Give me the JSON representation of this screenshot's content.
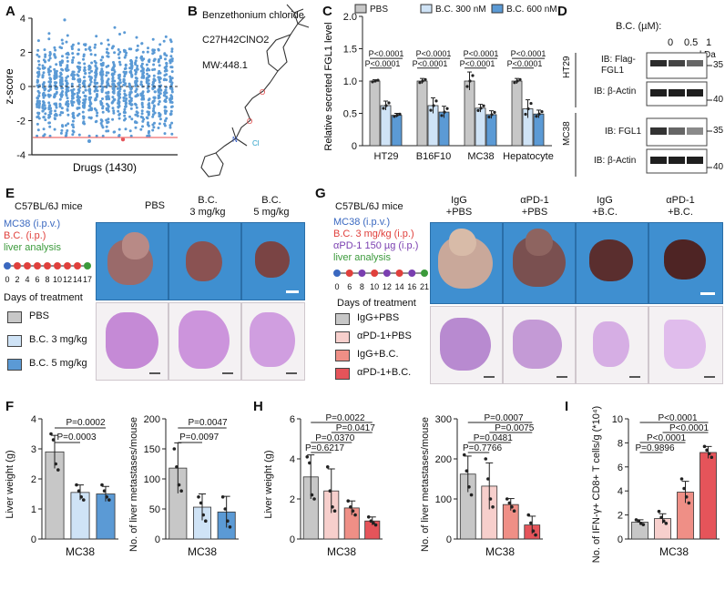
{
  "panels": {
    "A": "A",
    "B": "B",
    "C": "C",
    "D": "D",
    "E": "E",
    "F": "F",
    "G": "G",
    "H": "H",
    "I": "I"
  },
  "colors": {
    "gray": "#c7c7c7",
    "light_blue": "#cfe3f6",
    "blue": "#5b9ad5",
    "light_pink": "#f7cfcc",
    "salmon": "#ef8f86",
    "red": "#e5545a",
    "photo_bg": "#3f8fd0",
    "tissue": "#c58ad6"
  },
  "panelA": {
    "ylabel": "z-score",
    "xlabel": "Drugs (1430)",
    "yticks": [
      "4",
      "2",
      "0",
      "-2",
      "-4"
    ],
    "ylim": [
      -4,
      4
    ],
    "threshold": -3,
    "columns": 24
  },
  "panelB": {
    "name": "Benzethonium chloride",
    "formula": "C27H42ClNO2",
    "mw": "MW:448.1",
    "n_label": "N",
    "cl_label": "Cl"
  },
  "panelC": {
    "ylabel": "Relative secreted FGL1 level",
    "yticks": [
      "0",
      "0.5",
      "1.0",
      "1.5",
      "2.0"
    ],
    "legend": [
      "PBS",
      "B.C. 300 nM",
      "B.C. 600 nM"
    ],
    "categories": [
      "HT29",
      "B16F10",
      "MC38",
      "Hepatocyte"
    ],
    "pvals": [
      "P<0.0001",
      "P<0.0001",
      "P<0.0001",
      "P<0.0001",
      "P<0.0001",
      "P<0.0001",
      "P<0.0001",
      "P<0.0001"
    ]
  },
  "panelD": {
    "header": "B.C. (µM):",
    "doses": [
      "0",
      "0.5",
      "1"
    ],
    "kda": "kDa",
    "lines": [
      "HT29",
      "MC38"
    ],
    "blots": [
      "IB: Flag-\nFGL1",
      "IB: β-Actin",
      "IB: FGL1",
      "IB: β-Actin"
    ],
    "markers": [
      "35",
      "40",
      "35",
      "40"
    ]
  },
  "panelE": {
    "mouse": "C57BL/6J mice",
    "model": "MC38 (i.p.v.)",
    "treat": "B.C. (i.p.)",
    "analysis": "liver analysis",
    "ticks": [
      "0",
      "2",
      "4",
      "6",
      "8",
      "10",
      "12",
      "14",
      "17"
    ],
    "xlabel": "Days of treatment",
    "groups": [
      "PBS",
      "B.C. 3 mg/kg",
      "B.C. 5 mg/kg"
    ],
    "col_titles": [
      "PBS",
      "B.C.\n3 mg/kg",
      "B.C.\n5 mg/kg"
    ]
  },
  "panelG": {
    "mouse": "C57BL/6J mice",
    "model": "MC38 (i.p.v.)",
    "treat1": "B.C. 3 mg/kg (i.p.)",
    "treat2": "αPD-1 150 µg (i.p.)",
    "analysis": "liver analysis",
    "ticks": [
      "0",
      "6",
      "8",
      "10",
      "12",
      "14",
      "16",
      "21"
    ],
    "xlabel": "Days of treatment",
    "groups": [
      "IgG+PBS",
      "αPD-1+PBS",
      "IgG+B.C.",
      "αPD-1+B.C."
    ],
    "col_titles": [
      "IgG\n+PBS",
      "αPD-1\n+PBS",
      "IgG\n+B.C.",
      "αPD-1\n+B.C."
    ]
  },
  "chart_data": [
    {
      "id": "C",
      "type": "bar",
      "title": "",
      "ylabel": "Relative secreted FGL1 level",
      "ylim": [
        0,
        2.0
      ],
      "categories": [
        "HT29",
        "B16F10",
        "MC38",
        "Hepatocyte"
      ],
      "series": [
        {
          "name": "PBS",
          "values": [
            1.0,
            1.0,
            1.0,
            1.0
          ],
          "err": [
            0.02,
            0.04,
            0.14,
            0.04
          ]
        },
        {
          "name": "B.C. 300 nM",
          "values": [
            0.62,
            0.62,
            0.58,
            0.57
          ],
          "err": [
            0.07,
            0.12,
            0.06,
            0.14
          ]
        },
        {
          "name": "B.C. 600 nM",
          "values": [
            0.47,
            0.52,
            0.48,
            0.49
          ],
          "err": [
            0.03,
            0.09,
            0.06,
            0.06
          ]
        }
      ]
    },
    {
      "id": "F1",
      "type": "bar",
      "ylabel": "Liver weight (g)",
      "xlabel": "MC38",
      "ylim": [
        0,
        4
      ],
      "yticks": [
        "0",
        "1",
        "2",
        "3",
        "4"
      ],
      "categories": [
        "PBS",
        "B.C. 3 mg/kg",
        "B.C. 5 mg/kg"
      ],
      "values": [
        2.9,
        1.55,
        1.5
      ],
      "err": [
        0.55,
        0.25,
        0.25
      ],
      "points": [
        [
          3.5,
          3.3,
          2.5,
          2.3
        ],
        [
          1.8,
          1.6,
          1.4,
          1.3
        ],
        [
          1.8,
          1.6,
          1.4,
          1.3
        ]
      ],
      "pvals": [
        "P=0.0002",
        "P=0.0003"
      ]
    },
    {
      "id": "F2",
      "type": "bar",
      "ylabel": "No. of liver metastases/mouse",
      "xlabel": "MC38",
      "ylim": [
        0,
        200
      ],
      "yticks": [
        "0",
        "50",
        "100",
        "150",
        "200"
      ],
      "categories": [
        "PBS",
        "B.C. 3 mg/kg",
        "B.C. 5 mg/kg"
      ],
      "values": [
        118,
        53,
        45
      ],
      "err": [
        42,
        22,
        26
      ],
      "points": [
        [
          150,
          120,
          90,
          80
        ],
        [
          70,
          60,
          40,
          30
        ],
        [
          70,
          50,
          30,
          20
        ]
      ],
      "pvals": [
        "P=0.0047",
        "P=0.0097"
      ]
    },
    {
      "id": "H1",
      "type": "bar",
      "ylabel": "Liver weight (g)",
      "xlabel": "MC38",
      "ylim": [
        0,
        6
      ],
      "yticks": [
        "0",
        "2",
        "4",
        "6"
      ],
      "categories": [
        "IgG+PBS",
        "αPD-1+PBS",
        "IgG+B.C.",
        "αPD-1+B.C."
      ],
      "values": [
        3.1,
        2.4,
        1.55,
        0.9
      ],
      "err": [
        1.1,
        1.1,
        0.35,
        0.2
      ],
      "points": [
        [
          4.1,
          3.8,
          2.2,
          2.0
        ],
        [
          3.6,
          2.4,
          1.6,
          1.4
        ],
        [
          1.9,
          1.6,
          1.4,
          1.2
        ],
        [
          1.1,
          0.9,
          0.8,
          0.7
        ]
      ],
      "pvals": [
        "P=0.0022",
        "P=0.0417",
        "P=0.0370",
        "P=0.6217"
      ]
    },
    {
      "id": "H2",
      "type": "bar",
      "ylabel": "No. of liver metastases/mouse",
      "xlabel": "MC38",
      "ylim": [
        0,
        300
      ],
      "yticks": [
        "0",
        "100",
        "200",
        "300"
      ],
      "categories": [
        "IgG+PBS",
        "αPD-1+PBS",
        "IgG+B.C.",
        "αPD-1+B.C."
      ],
      "values": [
        162,
        132,
        86,
        35
      ],
      "err": [
        45,
        58,
        15,
        22
      ],
      "points": [
        [
          210,
          170,
          130,
          110
        ],
        [
          200,
          150,
          100,
          80
        ],
        [
          100,
          90,
          80,
          70
        ],
        [
          60,
          40,
          20,
          10
        ]
      ],
      "pvals": [
        "P=0.0007",
        "P=0.0075",
        "P=0.0481",
        "P=0.7766"
      ]
    },
    {
      "id": "I",
      "type": "bar",
      "ylabel": "No. of IFN-γ+ CD8+ T cells/g (*10⁴)",
      "xlabel": "MC38",
      "ylim": [
        0,
        10
      ],
      "yticks": [
        "0",
        "2",
        "4",
        "6",
        "8",
        "10"
      ],
      "categories": [
        "IgG+PBS",
        "αPD-1+PBS",
        "IgG+B.C.",
        "αPD-1+B.C."
      ],
      "values": [
        1.4,
        1.7,
        3.9,
        7.2
      ],
      "err": [
        0.2,
        0.4,
        0.9,
        0.5
      ],
      "points": [
        [
          1.6,
          1.5,
          1.3,
          1.2
        ],
        [
          2.3,
          1.8,
          1.5,
          1.3
        ],
        [
          5.0,
          4.2,
          3.5,
          3.0
        ],
        [
          7.7,
          7.4,
          7.1,
          6.8
        ]
      ],
      "pvals": [
        "P<0.0001",
        "P<0.0001",
        "P<0.0001",
        "P=0.9896"
      ]
    }
  ]
}
